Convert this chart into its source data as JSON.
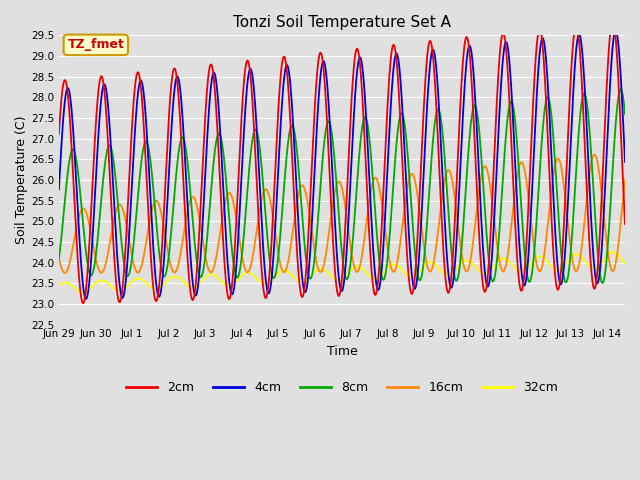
{
  "title": "Tonzi Soil Temperature Set A",
  "xlabel": "Time",
  "ylabel": "Soil Temperature (C)",
  "ylim": [
    22.5,
    29.5
  ],
  "xlim": [
    0,
    15.5
  ],
  "annotation_text": "TZ_fmet",
  "annotation_color": "#cc0000",
  "annotation_bg": "#ffffcc",
  "annotation_border": "#cc9900",
  "bg_color": "#e0e0e0",
  "grid_color": "#ffffff",
  "colors": {
    "2cm": "#ee0000",
    "4cm": "#0000dd",
    "8cm": "#00aa00",
    "16cm": "#ff8800",
    "32cm": "#ffff00"
  },
  "legend_labels": [
    "2cm",
    "4cm",
    "8cm",
    "16cm",
    "32cm"
  ],
  "xtick_labels": [
    "Jun 29",
    "Jun 30",
    "Jul 1",
    "Jul 2",
    "Jul 3",
    "Jul 4",
    "Jul 5",
    "Jul 6",
    "Jul 7",
    "Jul 8",
    "Jul 9",
    "Jul 10",
    "Jul 11",
    "Jul 12",
    "Jul 13",
    "Jul 14"
  ],
  "yticks": [
    22.5,
    23.0,
    23.5,
    24.0,
    24.5,
    25.0,
    25.5,
    26.0,
    26.5,
    27.0,
    27.5,
    28.0,
    28.5,
    29.0,
    29.5
  ]
}
